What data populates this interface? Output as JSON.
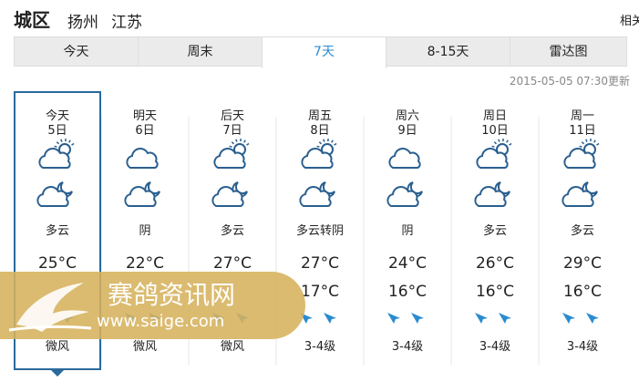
{
  "header": {
    "title": "城区",
    "city": "扬州",
    "province": "江苏",
    "related": "相关"
  },
  "tabs": [
    "今天",
    "周末",
    "7天",
    "8-15天",
    "雷达图"
  ],
  "active_tab": 2,
  "updated": "2015-05-05 07:30更新",
  "days": [
    {
      "name": "今天",
      "date": "5日",
      "icon_day": "partly-cloudy",
      "weather": "多云",
      "high": "25°C",
      "low": null,
      "wind": "微风"
    },
    {
      "name": "明天",
      "date": "6日",
      "icon_day": "cloudy",
      "weather": "阴",
      "high": "22°C",
      "low": null,
      "wind": "微风"
    },
    {
      "name": "后天",
      "date": "7日",
      "icon_day": "partly-cloudy",
      "weather": "多云",
      "high": "27°C",
      "low": null,
      "wind": "微风"
    },
    {
      "name": "周五",
      "date": "8日",
      "icon_day": "partly-cloudy",
      "weather": "多云转阴",
      "high": "27°C",
      "low": "17°C",
      "wind": "3-4级"
    },
    {
      "name": "周六",
      "date": "9日",
      "icon_day": "cloudy",
      "weather": "阴",
      "high": "24°C",
      "low": "16°C",
      "wind": "3-4级"
    },
    {
      "name": "周日",
      "date": "10日",
      "icon_day": "partly-cloudy",
      "weather": "多云",
      "high": "26°C",
      "low": "16°C",
      "wind": "3-4级"
    },
    {
      "name": "周一",
      "date": "11日",
      "icon_day": "partly-cloudy",
      "weather": "多云",
      "high": "29°C",
      "low": "16°C",
      "wind": "3-4级"
    }
  ],
  "selected_day": 0,
  "watermark": {
    "title": "赛鸽资讯网",
    "url": "www.saige.com"
  }
}
